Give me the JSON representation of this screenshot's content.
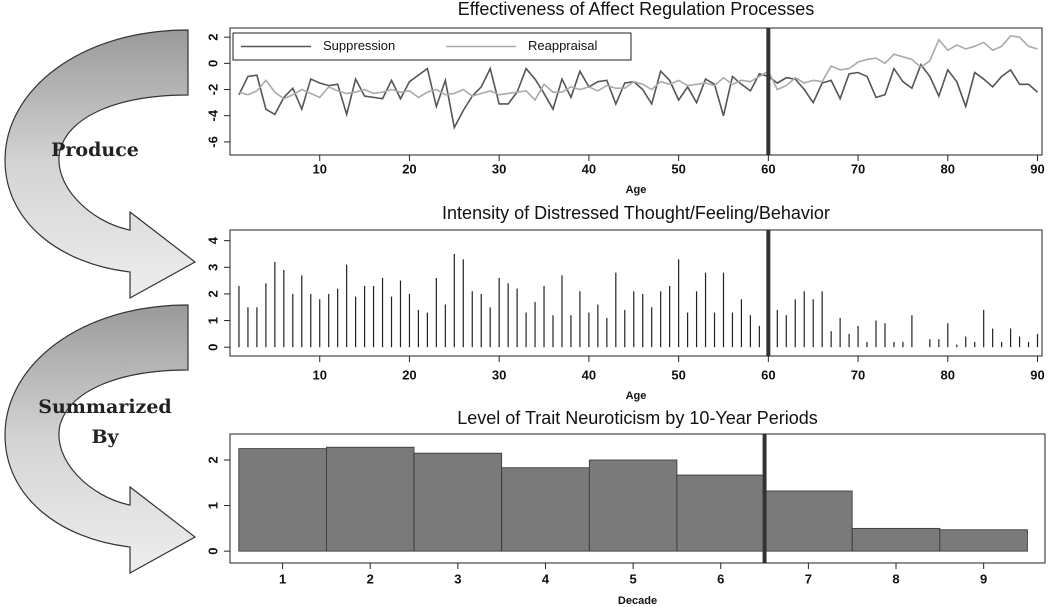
{
  "labels": [
    "Produce",
    "Summarized By"
  ],
  "chart_data": [
    {
      "type": "line",
      "title": "Effectiveness of Affect Regulation Processes",
      "xlabel": "Age",
      "x": [
        1,
        2,
        3,
        4,
        5,
        6,
        7,
        8,
        9,
        10,
        11,
        12,
        13,
        14,
        15,
        16,
        17,
        18,
        19,
        20,
        21,
        22,
        23,
        24,
        25,
        26,
        27,
        28,
        29,
        30,
        31,
        32,
        33,
        34,
        35,
        36,
        37,
        38,
        39,
        40,
        41,
        42,
        43,
        44,
        45,
        46,
        47,
        48,
        49,
        50,
        51,
        52,
        53,
        54,
        55,
        56,
        57,
        58,
        59,
        60,
        61,
        62,
        63,
        64,
        65,
        66,
        67,
        68,
        69,
        70,
        71,
        72,
        73,
        74,
        75,
        76,
        77,
        78,
        79,
        80,
        81,
        82,
        83,
        84,
        85,
        86,
        87,
        88,
        89,
        90
      ],
      "series": [
        {
          "name": "Suppression",
          "color": "#555555",
          "values": [
            -2.4,
            -1,
            -0.9,
            -3.5,
            -3.9,
            -2.6,
            -1.9,
            -3.5,
            -1.2,
            -1.5,
            -1.7,
            -1.6,
            -3.9,
            -1.2,
            -2.5,
            -2.6,
            -2.7,
            -1.3,
            -2.7,
            -1.4,
            -0.9,
            -0.4,
            -3.3,
            -1.3,
            -4.9,
            -3.6,
            -2.5,
            -1.8,
            -0.4,
            -3.1,
            -3.1,
            -2.2,
            -0.4,
            -1.2,
            -2.3,
            -3.5,
            -1.2,
            -2.6,
            -0.6,
            -1.8,
            -1.4,
            -1.3,
            -3.1,
            -1.5,
            -1.4,
            -2,
            -3.1,
            -0.6,
            -1.3,
            -2.8,
            -1.8,
            -3,
            -1.2,
            -1.6,
            -4,
            -1,
            -1.6,
            -2.1,
            -0.8,
            -1,
            -1.5,
            -1.1,
            -1.2,
            -2,
            -3,
            -1.5,
            -1.3,
            -2.7,
            -0.8,
            -0.7,
            -1,
            -2.6,
            -2.4,
            -0.4,
            -1.4,
            -1.9,
            -0.1,
            -1,
            -2.5,
            -0.5,
            -1.4,
            -3.3,
            -0.7,
            -1.2,
            -1.8,
            -1,
            -0.5,
            -1.6,
            -1.6,
            -2.2
          ]
        },
        {
          "name": "Reappraisal",
          "color": "#aaaaaa",
          "values": [
            -2.2,
            -2.4,
            -2.1,
            -1.3,
            -2.2,
            -2.7,
            -2.4,
            -2,
            -2.3,
            -2.6,
            -1.8,
            -2.1,
            -2.3,
            -2.2,
            -2,
            -2.3,
            -2.2,
            -2,
            -2.2,
            -2.1,
            -2.6,
            -2.2,
            -2,
            -2.4,
            -2.3,
            -2,
            -2.5,
            -2.3,
            -2.1,
            -2.4,
            -2.3,
            -2.2,
            -2.1,
            -2.8,
            -1.6,
            -2.2,
            -2.2,
            -1.8,
            -2,
            -1.8,
            -2.1,
            -1.7,
            -1.9,
            -1.9,
            -1.4,
            -1.6,
            -2,
            -1.4,
            -1.6,
            -1.3,
            -1.7,
            -1.6,
            -1.5,
            -1.7,
            -1.1,
            -1.6,
            -1.3,
            -1.4,
            -1,
            -0.6,
            -2,
            -1.7,
            -1.1,
            -1.5,
            -1.3,
            -1.4,
            -0.2,
            -0.5,
            -0.4,
            0.1,
            0.3,
            0.4,
            0,
            0.7,
            0.5,
            0.3,
            -0.3,
            0.2,
            1.8,
            1,
            1.4,
            1.1,
            1.3,
            1.6,
            1,
            1.3,
            2.1,
            2,
            1.3,
            1.1
          ]
        }
      ],
      "xlim": [
        0,
        90.5
      ],
      "ylim": [
        -7,
        2.7
      ],
      "xticks": [
        10,
        20,
        30,
        40,
        50,
        60,
        70,
        80,
        90
      ],
      "yticks": [
        -6,
        -4,
        -2,
        0,
        2
      ],
      "vline": 60,
      "legend": "upper left"
    },
    {
      "type": "stem",
      "title": "Intensity of Distressed Thought/Feeling/Behavior",
      "xlabel": "Age",
      "color": "#222222",
      "x": [
        1,
        2,
        3,
        4,
        5,
        6,
        7,
        8,
        9,
        10,
        11,
        12,
        13,
        14,
        15,
        16,
        17,
        18,
        19,
        20,
        21,
        22,
        23,
        24,
        25,
        26,
        27,
        28,
        29,
        30,
        31,
        32,
        33,
        34,
        35,
        36,
        37,
        38,
        39,
        40,
        41,
        42,
        43,
        44,
        45,
        46,
        47,
        48,
        49,
        50,
        51,
        52,
        53,
        54,
        55,
        56,
        57,
        58,
        59,
        60,
        61,
        62,
        63,
        64,
        65,
        66,
        67,
        68,
        69,
        70,
        71,
        72,
        73,
        74,
        75,
        76,
        77,
        78,
        79,
        80,
        81,
        82,
        83,
        84,
        85,
        86,
        87,
        88,
        89,
        90
      ],
      "values": [
        2.3,
        1.5,
        1.5,
        2.4,
        3.2,
        2.9,
        2,
        2.7,
        2,
        1.8,
        2,
        2.2,
        3.1,
        1.9,
        2.3,
        2.3,
        2.6,
        1.9,
        2.5,
        2,
        1.4,
        1.3,
        2.6,
        1.6,
        3.5,
        3.3,
        2.1,
        2,
        1.5,
        2.6,
        2.4,
        2.2,
        1.3,
        1.7,
        2.3,
        1.2,
        2.7,
        1.2,
        2.1,
        1.3,
        1.6,
        1.1,
        2.8,
        1.4,
        2.1,
        2,
        1.5,
        2.1,
        2.3,
        3.3,
        1.3,
        2.1,
        2.8,
        1.3,
        2.8,
        1.3,
        1.8,
        1.2,
        0.8,
        1,
        1.4,
        1.2,
        1.8,
        2.1,
        1.8,
        2.1,
        0.6,
        1.1,
        0.5,
        0.8,
        0.2,
        1,
        0.9,
        0.2,
        0.2,
        1.2,
        0,
        0.3,
        0.3,
        0.9,
        0.1,
        0.4,
        0.2,
        1.4,
        0.7,
        0.2,
        0.7,
        0.4,
        0.2,
        0.5
      ],
      "xlim": [
        0,
        90.5
      ],
      "ylim": [
        -0.33,
        4.4
      ],
      "xticks": [
        10,
        20,
        30,
        40,
        50,
        60,
        70,
        80,
        90
      ],
      "yticks": [
        0,
        1,
        2,
        3,
        4
      ],
      "vline": 60
    },
    {
      "type": "bar",
      "title": "Level of Trait Neuroticism by 10-Year Periods",
      "xlabel": "Decade",
      "color": "#7a7a7a",
      "x": [
        1,
        2,
        3,
        4,
        5,
        6,
        7,
        8,
        9
      ],
      "values": [
        2.25,
        2.28,
        2.15,
        1.83,
        2,
        1.67,
        1.32,
        0.5,
        0.47
      ],
      "xlim": [
        0.4,
        9.7
      ],
      "ylim": [
        -0.26,
        2.57
      ],
      "xticks": [
        1,
        2,
        3,
        4,
        5,
        6,
        7,
        8,
        9
      ],
      "yticks": [
        0,
        1,
        2
      ],
      "vline": 6.5
    }
  ]
}
